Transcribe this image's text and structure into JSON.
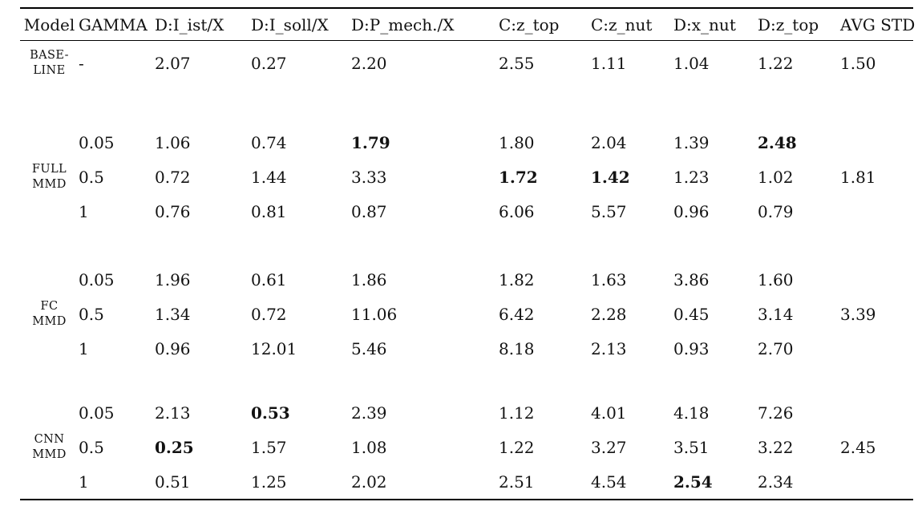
{
  "table": {
    "columns": [
      "Model",
      "GAMMA",
      "D:I_ist/X",
      "D:I_soll/X",
      "D:P_mech./X",
      "C:z_top",
      "C:z_nut",
      "D:x_nut",
      "D:z_top",
      "AVG STD"
    ],
    "groups": [
      {
        "model": "BASE- LINE",
        "avg_std": "1.50",
        "rows": [
          {
            "gamma": "-",
            "values": [
              "2.07",
              "0.27",
              "2.20",
              "2.55",
              "1.11",
              "1.04",
              "1.22"
            ],
            "bold": []
          }
        ]
      },
      {
        "model": "FULL MMD",
        "avg_std": "1.81",
        "rows": [
          {
            "gamma": "0.05",
            "values": [
              "1.06",
              "0.74",
              "1.79",
              "1.80",
              "2.04",
              "1.39",
              "2.48"
            ],
            "bold": [
              2,
              6
            ]
          },
          {
            "gamma": "0.5",
            "values": [
              "0.72",
              "1.44",
              "3.33",
              "1.72",
              "1.42",
              "1.23",
              "1.02"
            ],
            "bold": [
              3,
              4
            ]
          },
          {
            "gamma": "1",
            "values": [
              "0.76",
              "0.81",
              "0.87",
              "6.06",
              "5.57",
              "0.96",
              "0.79"
            ],
            "bold": []
          }
        ]
      },
      {
        "model": "FC MMD",
        "avg_std": "3.39",
        "rows": [
          {
            "gamma": "0.05",
            "values": [
              "1.96",
              "0.61",
              "1.86",
              "1.82",
              "1.63",
              "3.86",
              "1.60"
            ],
            "bold": []
          },
          {
            "gamma": "0.5",
            "values": [
              "1.34",
              "0.72",
              "11.06",
              "6.42",
              "2.28",
              "0.45",
              "3.14"
            ],
            "bold": []
          },
          {
            "gamma": "1",
            "values": [
              "0.96",
              "12.01",
              "5.46",
              "8.18",
              "2.13",
              "0.93",
              "2.70"
            ],
            "bold": []
          }
        ]
      },
      {
        "model": "CNN MMD",
        "avg_std": "2.45",
        "rows": [
          {
            "gamma": "0.05",
            "values": [
              "2.13",
              "0.53",
              "2.39",
              "1.12",
              "4.01",
              "4.18",
              "7.26"
            ],
            "bold": [
              1
            ]
          },
          {
            "gamma": "0.5",
            "values": [
              "0.25",
              "1.57",
              "1.08",
              "1.22",
              "3.27",
              "3.51",
              "3.22"
            ],
            "bold": [
              0
            ]
          },
          {
            "gamma": "1",
            "values": [
              "0.51",
              "1.25",
              "2.02",
              "2.51",
              "4.54",
              "2.54",
              "2.34"
            ],
            "bold": [
              5
            ]
          }
        ]
      }
    ]
  }
}
